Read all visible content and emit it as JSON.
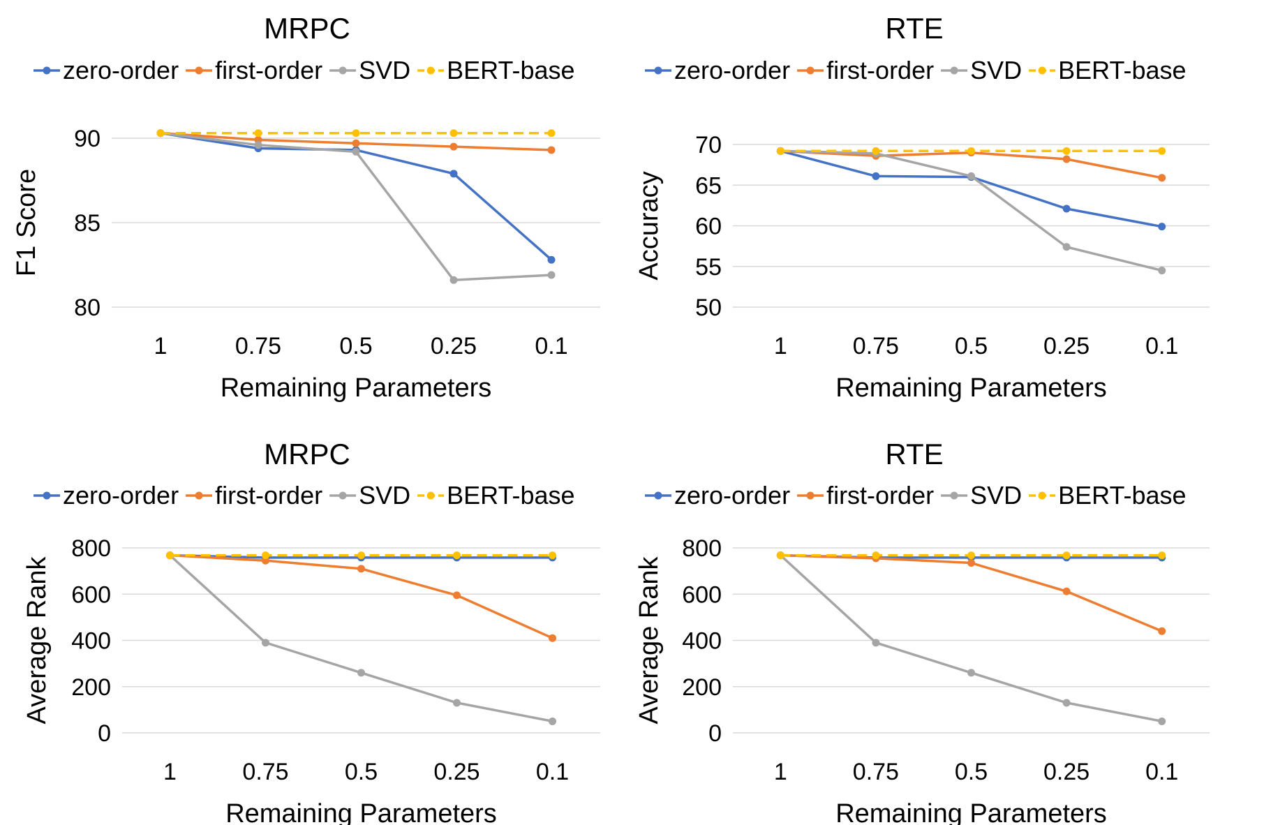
{
  "chart_data": [
    {
      "type": "line",
      "title": "MRPC",
      "xlabel": "Remaining Parameters",
      "ylabel": "F1 Score",
      "categories": [
        "1",
        "0.75",
        "0.5",
        "0.25",
        "0.1"
      ],
      "ylim": [
        80,
        90
      ],
      "yticks": [
        80,
        85,
        90
      ],
      "grid": true,
      "legend": "top",
      "series": [
        {
          "name": "zero-order",
          "color": "#4472C4",
          "dashed": false,
          "values": [
            90.3,
            89.4,
            89.3,
            87.9,
            82.8
          ]
        },
        {
          "name": "first-order",
          "color": "#ED7D31",
          "dashed": false,
          "values": [
            90.3,
            89.9,
            89.7,
            89.5,
            89.3
          ]
        },
        {
          "name": "SVD",
          "color": "#A5A5A5",
          "dashed": false,
          "values": [
            90.3,
            89.6,
            89.2,
            81.6,
            81.9
          ]
        },
        {
          "name": "BERT-base",
          "color": "#FFC000",
          "dashed": true,
          "values": [
            90.3,
            90.3,
            90.3,
            90.3,
            90.3
          ]
        }
      ]
    },
    {
      "type": "line",
      "title": "RTE",
      "xlabel": "Remaining Parameters",
      "ylabel": "Accuracy",
      "categories": [
        "1",
        "0.75",
        "0.5",
        "0.25",
        "0.1"
      ],
      "ylim": [
        50,
        70
      ],
      "yticks": [
        50,
        55,
        60,
        65,
        70
      ],
      "grid": true,
      "legend": "top",
      "series": [
        {
          "name": "zero-order",
          "color": "#4472C4",
          "dashed": false,
          "values": [
            69.2,
            66.1,
            66.0,
            62.1,
            59.9
          ]
        },
        {
          "name": "first-order",
          "color": "#ED7D31",
          "dashed": false,
          "values": [
            69.2,
            68.6,
            69.0,
            68.2,
            65.9
          ]
        },
        {
          "name": "SVD",
          "color": "#A5A5A5",
          "dashed": false,
          "values": [
            69.2,
            68.9,
            66.1,
            57.4,
            54.5
          ]
        },
        {
          "name": "BERT-base",
          "color": "#FFC000",
          "dashed": true,
          "values": [
            69.2,
            69.2,
            69.2,
            69.2,
            69.2
          ]
        }
      ]
    },
    {
      "type": "line",
      "title": "MRPC",
      "xlabel": "Remaining Parameters",
      "ylabel": "Average Rank",
      "categories": [
        "1",
        "0.75",
        "0.5",
        "0.25",
        "0.1"
      ],
      "ylim": [
        0,
        800
      ],
      "yticks": [
        0,
        200,
        400,
        600,
        800
      ],
      "grid": true,
      "legend": "top",
      "series": [
        {
          "name": "zero-order",
          "color": "#4472C4",
          "dashed": false,
          "values": [
            768,
            758,
            758,
            758,
            758
          ]
        },
        {
          "name": "first-order",
          "color": "#ED7D31",
          "dashed": false,
          "values": [
            768,
            745,
            710,
            595,
            410
          ]
        },
        {
          "name": "SVD",
          "color": "#A5A5A5",
          "dashed": false,
          "values": [
            768,
            390,
            260,
            130,
            50
          ]
        },
        {
          "name": "BERT-base",
          "color": "#FFC000",
          "dashed": true,
          "values": [
            768,
            768,
            768,
            768,
            768
          ]
        }
      ]
    },
    {
      "type": "line",
      "title": "RTE",
      "xlabel": "Remaining Parameters",
      "ylabel": "Average Rank",
      "categories": [
        "1",
        "0.75",
        "0.5",
        "0.25",
        "0.1"
      ],
      "ylim": [
        0,
        800
      ],
      "yticks": [
        0,
        200,
        400,
        600,
        800
      ],
      "grid": true,
      "legend": "top",
      "series": [
        {
          "name": "zero-order",
          "color": "#4472C4",
          "dashed": false,
          "values": [
            768,
            758,
            758,
            758,
            758
          ]
        },
        {
          "name": "first-order",
          "color": "#ED7D31",
          "dashed": false,
          "values": [
            768,
            755,
            735,
            612,
            440
          ]
        },
        {
          "name": "SVD",
          "color": "#A5A5A5",
          "dashed": false,
          "values": [
            768,
            390,
            260,
            130,
            50
          ]
        },
        {
          "name": "BERT-base",
          "color": "#FFC000",
          "dashed": true,
          "values": [
            768,
            768,
            768,
            768,
            768
          ]
        }
      ]
    }
  ]
}
